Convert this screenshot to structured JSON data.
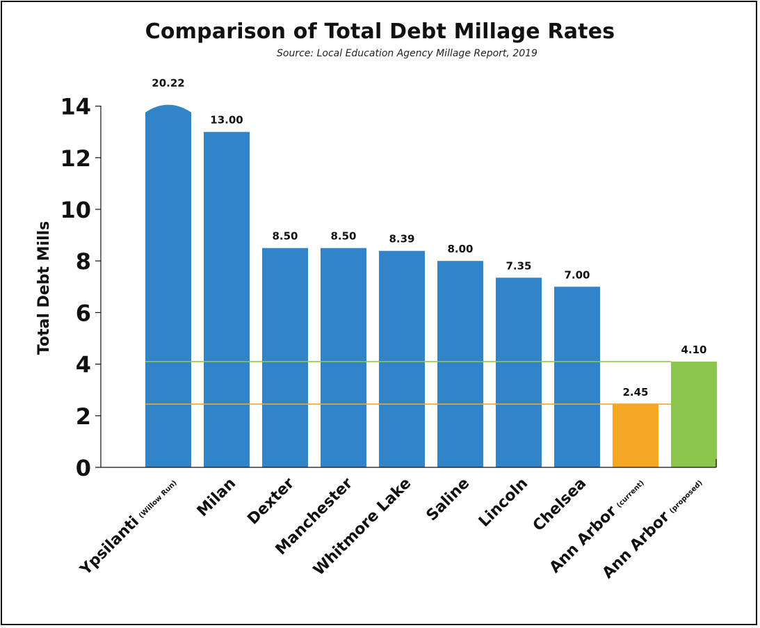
{
  "colors": {
    "blue": "#3184C8",
    "orange": "#F5A623",
    "green": "#8DC64C",
    "axis": "#111111"
  },
  "chart_data": {
    "type": "bar",
    "title": "Comparison of Total Debt Millage Rates",
    "subtitle": "Source:  Local Education Agency Millage Report, 2019",
    "ylabel": "Total Debt Mills",
    "xlabel": "",
    "ylim": [
      0,
      14
    ],
    "yticks": [
      "0",
      "2",
      "4",
      "6",
      "8",
      "10",
      "12",
      "14"
    ],
    "categories": [
      {
        "name": "Ypsilanti",
        "note": "(Willow Run)"
      },
      {
        "name": "Milan",
        "note": ""
      },
      {
        "name": "Dexter",
        "note": ""
      },
      {
        "name": "Manchester",
        "note": ""
      },
      {
        "name": "Whitmore Lake",
        "note": ""
      },
      {
        "name": "Saline",
        "note": ""
      },
      {
        "name": "Lincoln",
        "note": ""
      },
      {
        "name": "Chelsea",
        "note": ""
      },
      {
        "name": "Ann Arbor",
        "note": "(current)"
      },
      {
        "name": "Ann Arbor",
        "note": "(proposed)"
      }
    ],
    "values": [
      20.22,
      13.0,
      8.5,
      8.5,
      8.39,
      8.0,
      7.35,
      7.0,
      2.45,
      4.1
    ],
    "value_labels": [
      "20.22",
      "13.00",
      "8.50",
      "8.50",
      "8.39",
      "8.00",
      "7.35",
      "7.00",
      "2.45",
      "4.10"
    ],
    "bar_colors": [
      "blue",
      "blue",
      "blue",
      "blue",
      "blue",
      "blue",
      "blue",
      "blue",
      "orange",
      "green"
    ],
    "reference_lines": [
      {
        "value": 4.1,
        "color": "green"
      },
      {
        "value": 2.45,
        "color": "orange"
      }
    ],
    "grid": false,
    "legend": "none"
  }
}
